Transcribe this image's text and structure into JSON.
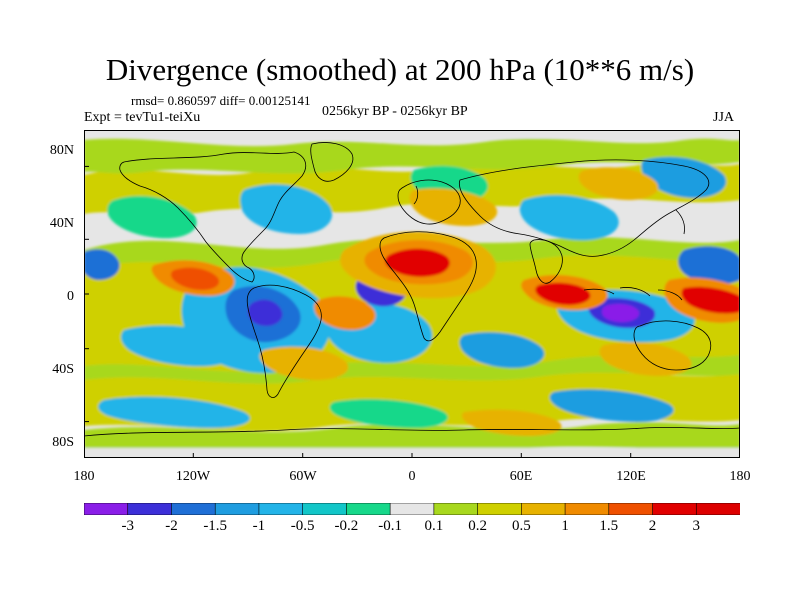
{
  "title": "Divergence (smoothed) at 200 hPa (10**6 m/s)",
  "stats": "rmsd= 0.860597 diff= 0.00125141",
  "experiment": "Expt = tevTu1-teiXu",
  "period": "0256kyr BP - 0256kyr BP",
  "season": "JJA",
  "lat_labels": [
    "80N",
    "40N",
    "0",
    "40S",
    "80S"
  ],
  "lon_labels": [
    "180",
    "120W",
    "60W",
    "0",
    "60E",
    "120E",
    "180"
  ],
  "colorbar": {
    "labels": [
      "-3",
      "-2",
      "-1.5",
      "-1",
      "-0.5",
      "-0.2",
      "-0.1",
      "0.1",
      "0.2",
      "0.5",
      "1",
      "1.5",
      "2",
      "3"
    ],
    "colors": [
      "#8a1ee8",
      "#3c2fd8",
      "#1f6fd6",
      "#1f9de0",
      "#23b4e8",
      "#12c6c8",
      "#17d88a",
      "#e6e6e6",
      "#a8d81e",
      "#cfd000",
      "#e7b200",
      "#f08b00",
      "#ef5000",
      "#e10000",
      "#dd0000"
    ]
  }
}
